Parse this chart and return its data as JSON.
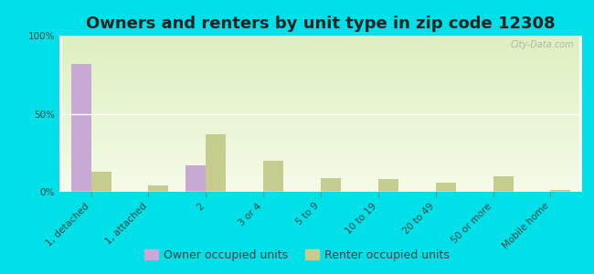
{
  "title": "Owners and renters by unit type in zip code 12308",
  "categories": [
    "1, detached",
    "1, attached",
    "2",
    "3 or 4",
    "5 to 9",
    "10 to 19",
    "20 to 49",
    "50 or more",
    "Mobile home"
  ],
  "owner_values": [
    82,
    0,
    17,
    0,
    0,
    0,
    0,
    0,
    0
  ],
  "renter_values": [
    13,
    4,
    37,
    20,
    9,
    8,
    6,
    10,
    1
  ],
  "owner_color": "#c9a8d4",
  "renter_color": "#c5cc8e",
  "bg_color_top": "#ddf0c0",
  "bg_color_bottom": "#f5fbe8",
  "outer_bg": "#00e0e8",
  "ylim": [
    0,
    100
  ],
  "yticks": [
    0,
    50,
    100
  ],
  "ytick_labels": [
    "0%",
    "50%",
    "100%"
  ],
  "bar_width": 0.35,
  "legend_owner": "Owner occupied units",
  "legend_renter": "Renter occupied units",
  "title_fontsize": 13,
  "tick_fontsize": 7.5,
  "legend_fontsize": 9,
  "watermark": "City-Data.com"
}
